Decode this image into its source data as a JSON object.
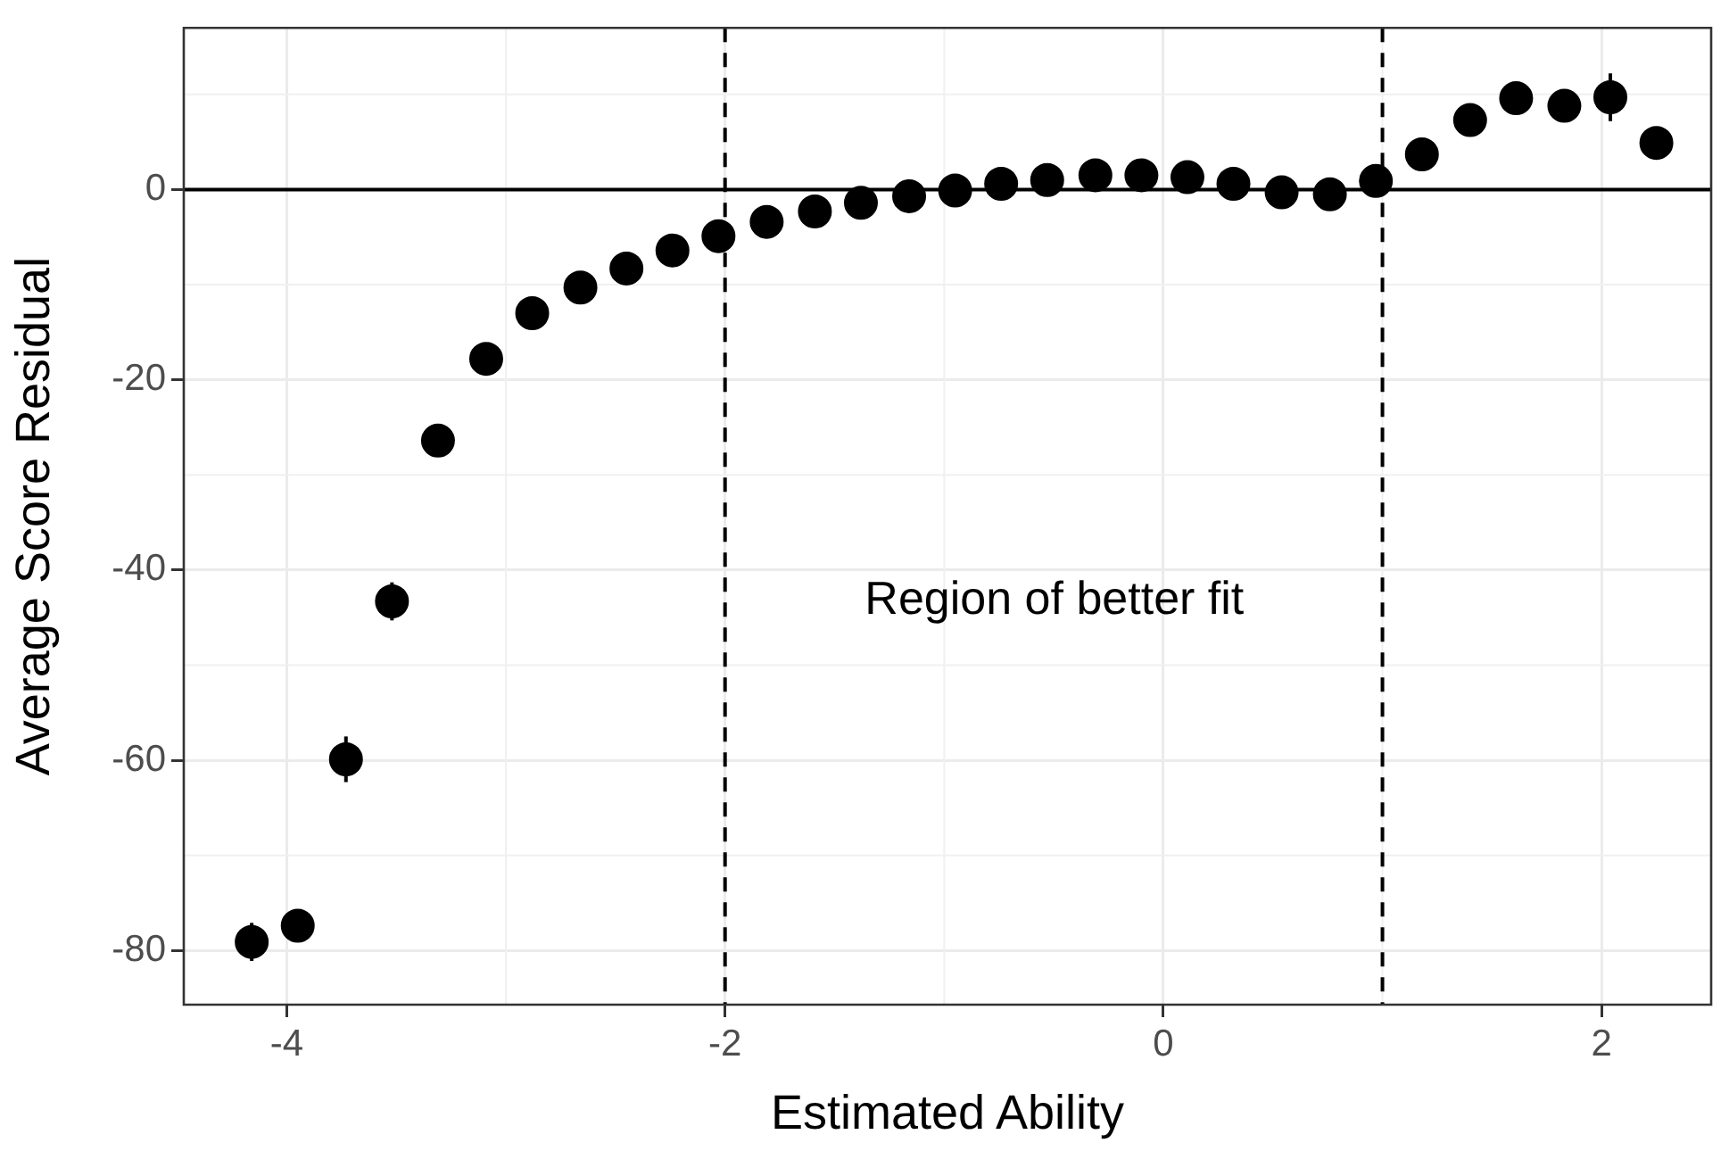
{
  "chart_data": {
    "type": "scatter",
    "xlabel": "Estimated Ability",
    "ylabel": "Average Score Residual",
    "x": [
      -4.16,
      -3.95,
      -3.73,
      -3.52,
      -3.31,
      -3.09,
      -2.88,
      -2.66,
      -2.45,
      -2.24,
      -2.03,
      -1.81,
      -1.59,
      -1.38,
      -1.16,
      -0.95,
      -0.74,
      -0.53,
      -0.31,
      -0.1,
      0.11,
      0.32,
      0.54,
      0.76,
      0.97,
      1.18,
      1.4,
      1.61,
      1.83,
      2.04,
      2.25
    ],
    "values": [
      -79.1,
      -77.4,
      -59.9,
      -43.3,
      -26.4,
      -17.8,
      -13.0,
      -10.3,
      -8.3,
      -6.4,
      -4.9,
      -3.4,
      -2.3,
      -1.4,
      -0.7,
      -0.1,
      0.6,
      1.0,
      1.5,
      1.5,
      1.3,
      0.6,
      -0.3,
      -0.5,
      0.9,
      3.7,
      7.3,
      9.6,
      8.8,
      9.7,
      4.9
    ],
    "errors": [
      2,
      null,
      2.4,
      2,
      null,
      null,
      null,
      null,
      null,
      null,
      null,
      null,
      null,
      null,
      null,
      null,
      null,
      null,
      null,
      null,
      null,
      null,
      null,
      null,
      null,
      null,
      null,
      null,
      null,
      2.5,
      null
    ],
    "color": "#000000",
    "marker": "circle",
    "xlim": [
      -4.47,
      2.5
    ],
    "xticks": [
      -4,
      -2,
      0,
      2
    ],
    "ylim": [
      -85.7,
      17
    ],
    "yticks": [
      -80,
      -60,
      -40,
      -20,
      0
    ],
    "grid": true,
    "legend": false,
    "ref_lines": [
      {
        "axis": "y",
        "value": 0,
        "color": "#000000",
        "line_style": "solid"
      },
      {
        "axis": "x",
        "value": -2,
        "color": "#000000",
        "line_style": "dashed"
      },
      {
        "axis": "x",
        "value": 1,
        "color": "#000000",
        "line_style": "dashed"
      }
    ],
    "annotations": [
      "Region of better fit"
    ]
  }
}
